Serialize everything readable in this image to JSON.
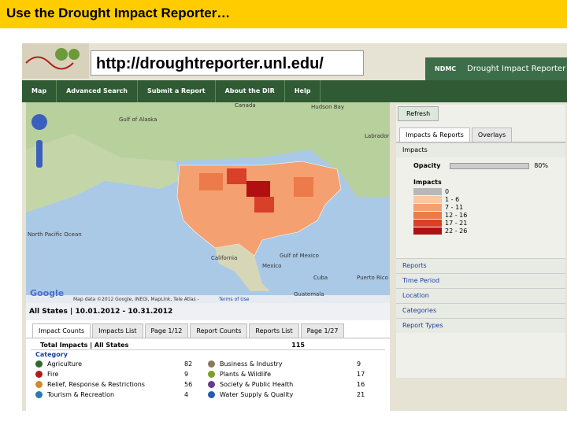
{
  "slide_title": "Use the Drought Impact Reporter…",
  "url": "http://droughtreporter.unl.edu/",
  "header": {
    "org": "NDMC",
    "app": "Drought Impact Reporter"
  },
  "nav": [
    "Map",
    "Advanced Search",
    "Submit a Report",
    "About the DIR",
    "Help"
  ],
  "map": {
    "labels": [
      "Canada",
      "Hudson Bay",
      "Gulf of Alaska",
      "North Pacific Ocean",
      "California",
      "Mexico",
      "Gulf of Mexico",
      "Cuba",
      "Puerto Rico",
      "Guatemala",
      "Labrador Sea"
    ],
    "attribution": "Map data ©2012 Google, INEGI, MapLink, Tele Atlas - ",
    "terms": "Terms of Use",
    "google": "Google"
  },
  "filter": "All States | 10.01.2012 - 10.31.2012",
  "tabs": [
    "Impact Counts",
    "Impacts List",
    "Page 1/12",
    "Report Counts",
    "Reports List",
    "Page 1/27"
  ],
  "table": {
    "total_label": "Total Impacts | All States",
    "total": 115,
    "category_header": "Category",
    "rows": [
      {
        "name": "Agriculture",
        "count": 82,
        "color": "#2f6b2f"
      },
      {
        "name": "Fire",
        "count": 9,
        "color": "#b01c1c"
      },
      {
        "name": "Relief, Response & Restrictions",
        "count": 56,
        "color": "#d08a2a"
      },
      {
        "name": "Tourism & Recreation",
        "count": 4,
        "color": "#2a7ab0"
      },
      {
        "name": "Business & Industry",
        "count": 9,
        "color": "#8a7a5a"
      },
      {
        "name": "Plants & Wildlife",
        "count": 17,
        "color": "#7aa02a"
      },
      {
        "name": "Society & Public Health",
        "count": 16,
        "color": "#6a3a8a"
      },
      {
        "name": "Water Supply & Quality",
        "count": 21,
        "color": "#2a5ab0"
      }
    ]
  },
  "panel": {
    "refresh": "Refresh",
    "tabs": [
      "Impacts & Reports",
      "Overlays"
    ],
    "impacts": "Impacts",
    "opacity": "Opacity",
    "opacity_value": "80%",
    "legend_title": "Impacts",
    "legend": [
      {
        "label": "0",
        "color": "#b8b8b8"
      },
      {
        "label": "1 - 6",
        "color": "#f9c7a0"
      },
      {
        "label": "7 - 11",
        "color": "#f4a070"
      },
      {
        "label": "12 - 16",
        "color": "#ec7a4a"
      },
      {
        "label": "17 - 21",
        "color": "#d8402a"
      },
      {
        "label": "22 - 26",
        "color": "#b01010"
      }
    ],
    "sections": [
      "Reports",
      "Time Period",
      "Location",
      "Categories",
      "Report Types"
    ]
  }
}
